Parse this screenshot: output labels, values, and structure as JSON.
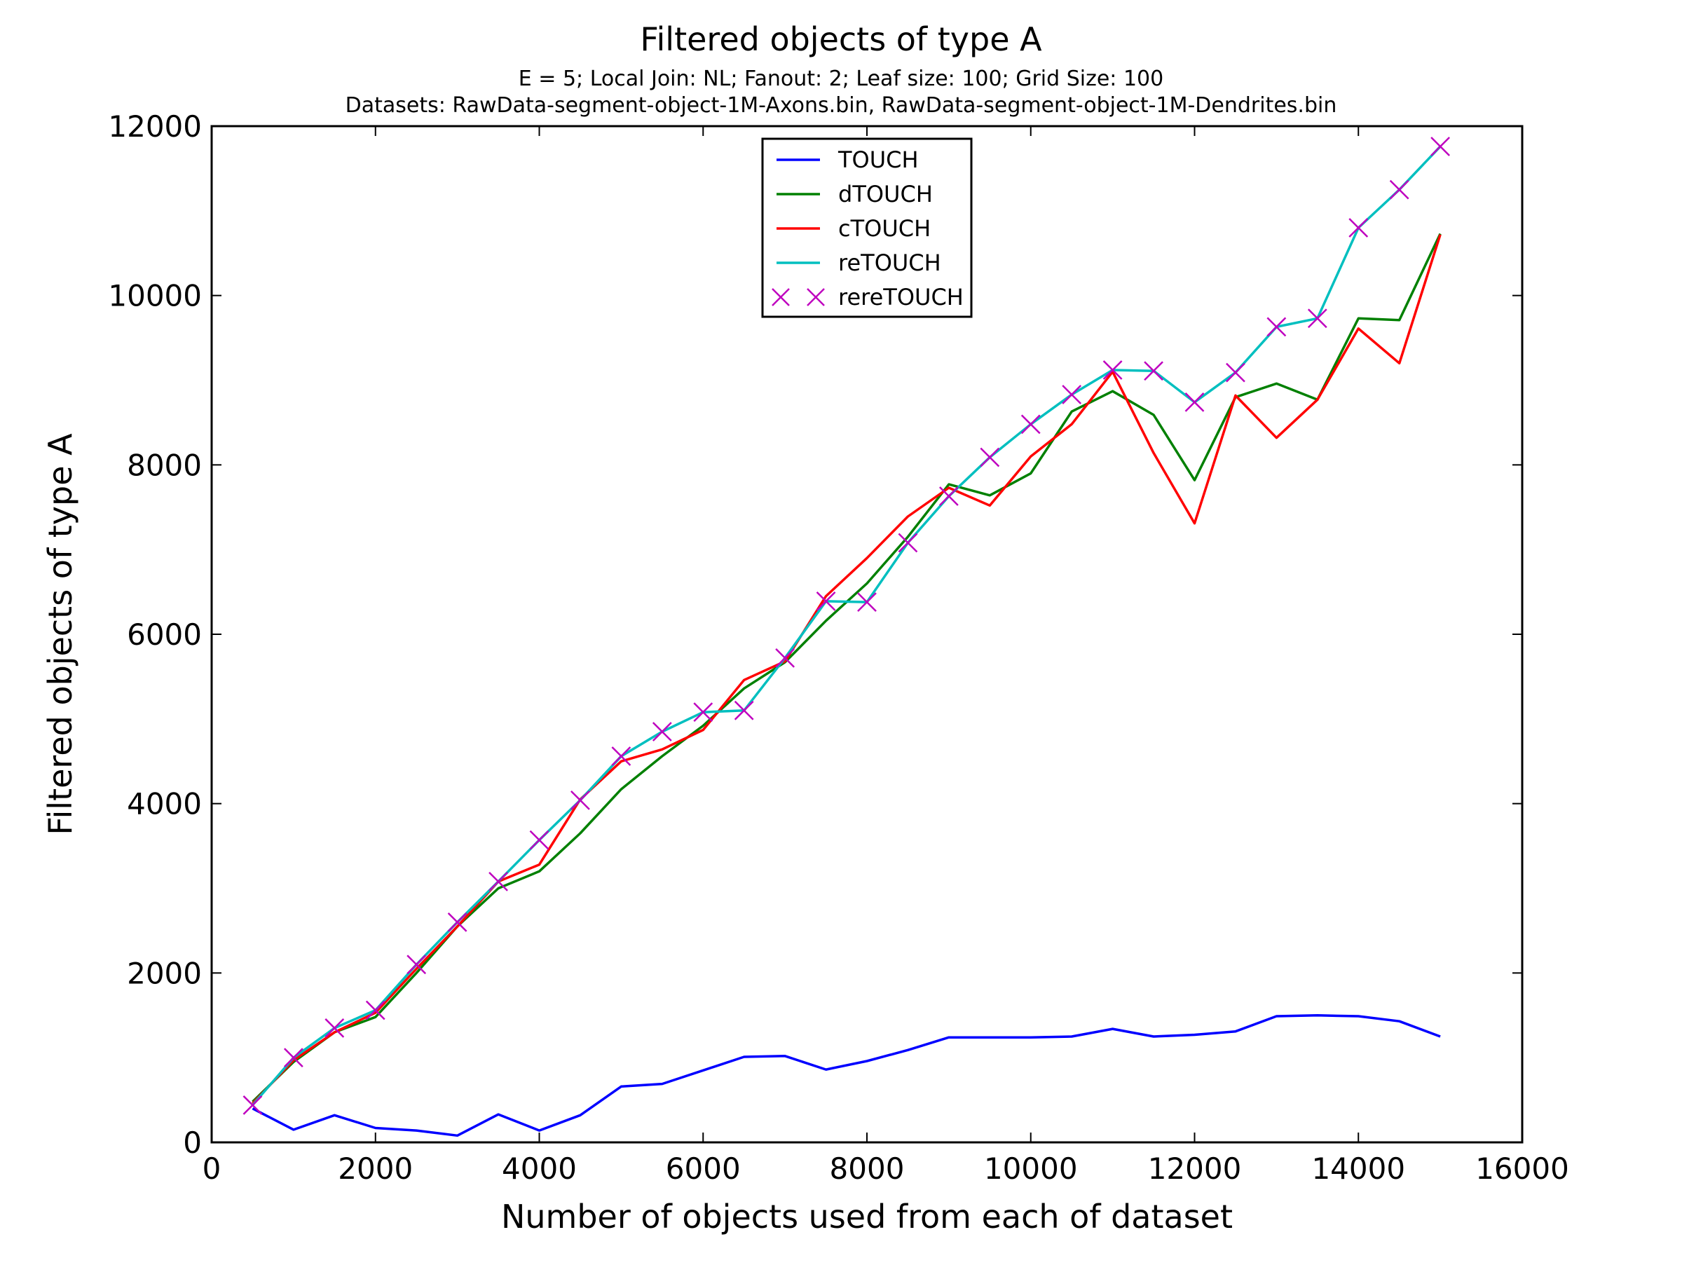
{
  "chart_data": {
    "type": "line",
    "title": "Filtered objects of type A",
    "subtitle_lines": [
      "E = 5; Local Join: NL; Fanout: 2; Leaf size: 100; Grid Size: 100",
      "Datasets: RawData-segment-object-1M-Axons.bin, RawData-segment-object-1M-Dendrites.bin"
    ],
    "xlabel": "Number of objects used from each of dataset",
    "ylabel": "Filtered objects of type A",
    "xlim": [
      0,
      16000
    ],
    "ylim": [
      0,
      12000
    ],
    "xticks": [
      0,
      2000,
      4000,
      6000,
      8000,
      10000,
      12000,
      14000,
      16000
    ],
    "yticks": [
      0,
      2000,
      4000,
      6000,
      8000,
      10000,
      12000
    ],
    "grid": false,
    "legend_position": "top-center",
    "x": [
      500,
      1000,
      1500,
      2000,
      2500,
      3000,
      3500,
      4000,
      4500,
      5000,
      5500,
      6000,
      6500,
      7000,
      7500,
      8000,
      8500,
      9000,
      9500,
      10000,
      10500,
      11000,
      11500,
      12000,
      12500,
      13000,
      13500,
      14000,
      14500,
      15000
    ],
    "series": [
      {
        "name": "TOUCH",
        "color": "#0000ff",
        "style": "line",
        "values": [
          400,
          150,
          320,
          170,
          140,
          80,
          330,
          140,
          320,
          660,
          690,
          850,
          1010,
          1020,
          860,
          960,
          1090,
          1240,
          1240,
          1240,
          1250,
          1340,
          1250,
          1270,
          1310,
          1490,
          1500,
          1490,
          1430,
          1250
        ]
      },
      {
        "name": "dTOUCH",
        "color": "#008000",
        "style": "line",
        "values": [
          480,
          950,
          1300,
          1480,
          2000,
          2550,
          3000,
          3200,
          3650,
          4170,
          4560,
          4920,
          5360,
          5670,
          6160,
          6600,
          7150,
          7770,
          7640,
          7900,
          8630,
          8870,
          8590,
          7820,
          8800,
          8960,
          8770,
          9730,
          9710,
          10730
        ]
      },
      {
        "name": "cTOUCH",
        "color": "#ff0000",
        "style": "line",
        "values": [
          460,
          970,
          1300,
          1530,
          2050,
          2550,
          3080,
          3280,
          4050,
          4500,
          4640,
          4870,
          5460,
          5680,
          6450,
          6900,
          7390,
          7730,
          7520,
          8100,
          8480,
          9100,
          8140,
          7310,
          8820,
          8320,
          8770,
          9610,
          9200,
          10720
        ]
      },
      {
        "name": "reTOUCH",
        "color": "#00bfbf",
        "style": "line",
        "values": [
          440,
          1000,
          1350,
          1560,
          2100,
          2600,
          3080,
          3570,
          4040,
          4560,
          4850,
          5080,
          5100,
          5720,
          6390,
          6380,
          7080,
          7630,
          8090,
          8480,
          8830,
          9120,
          9110,
          8740,
          9090,
          9630,
          9730,
          10800,
          11250,
          11760
        ]
      },
      {
        "name": "rereTOUCH",
        "color": "#bf00bf",
        "style": "marker-x",
        "values": [
          440,
          1000,
          1350,
          1560,
          2100,
          2600,
          3080,
          3570,
          4040,
          4560,
          4850,
          5080,
          5100,
          5720,
          6390,
          6380,
          7080,
          7630,
          8090,
          8480,
          8830,
          9120,
          9110,
          8740,
          9090,
          9630,
          9730,
          10800,
          11250,
          11760
        ]
      }
    ]
  }
}
